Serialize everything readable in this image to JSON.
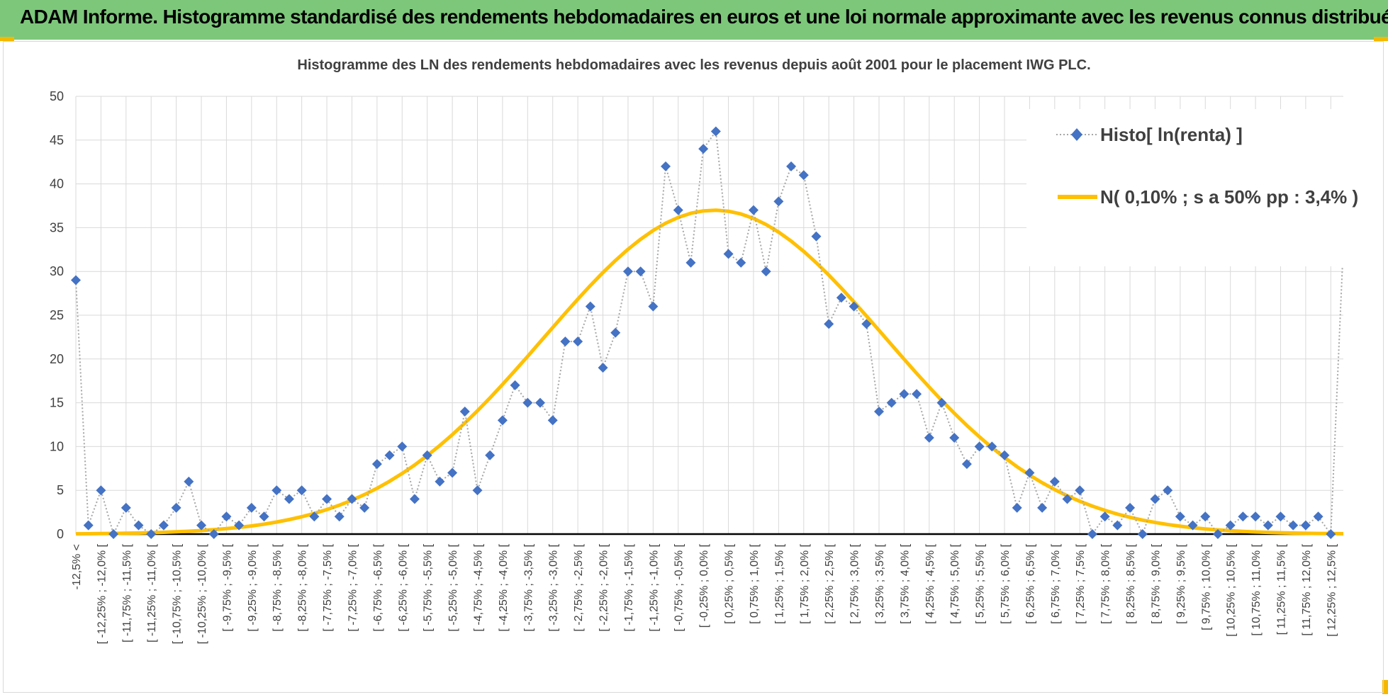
{
  "header": {
    "title": "ADAM Informe. Histogramme standardisé des rendements hebdomadaires en euros et une loi normale approximante avec les revenus connus distribués"
  },
  "colors": {
    "banner": "#7dc77b",
    "histo": "#4472c4",
    "histo_line": "#a6a6a6",
    "normal": "#ffc000",
    "grid": "#d9d9d9",
    "axis": "#000000"
  },
  "chart_data": {
    "type": "line",
    "title": "Histogramme des LN des rendements hebdomadaires avec les revenus depuis août 2001 pour le placement IWG PLC.",
    "xlabel": "",
    "ylabel": "",
    "ylim": [
      0,
      50
    ],
    "yticks": [
      0,
      5,
      10,
      15,
      20,
      25,
      30,
      35,
      40,
      45,
      50
    ],
    "grid": true,
    "legend_position": "top-right",
    "categories": [
      "-12,5% <",
      "[ -12,5% ; -12,25% [",
      "[ -12,25% ; -12,0% [",
      "[ -12,0% ; -11,75% [",
      "[ -11,75% ; -11,5% [",
      "[ -11,5% ; -11,25% [",
      "[ -11,25% ; -11,0% [",
      "[ -11,0% ; -10,75% [",
      "[ -10,75% ; -10,5% [",
      "[ -10,5% ; -10,25% [",
      "[ -10,25% ; -10,0% [",
      "[ -10,0% ; -9,75% [",
      "[ -9,75% ; -9,5% [",
      "[ -9,5% ; -9,25% [",
      "[ -9,25% ; -9,0% [",
      "[ -9,0% ; -8,75% [",
      "[ -8,75% ; -8,5% [",
      "[ -8,5% ; -8,25% [",
      "[ -8,25% ; -8,0% [",
      "[ -8,0% ; -7,75% [",
      "[ -7,75% ; -7,5% [",
      "[ -7,5% ; -7,25% [",
      "[ -7,25% ; -7,0% [",
      "[ -7,0% ; -6,75% [",
      "[ -6,75% ; -6,5% [",
      "[ -6,5% ; -6,25% [",
      "[ -6,25% ; -6,0% [",
      "[ -6,0% ; -5,75% [",
      "[ -5,75% ; -5,5% [",
      "[ -5,5% ; -5,25% [",
      "[ -5,25% ; -5,0% [",
      "[ -5,0% ; -4,75% [",
      "[ -4,75% ; -4,5% [",
      "[ -4,5% ; -4,25% [",
      "[ -4,25% ; -4,0% [",
      "[ -4,0% ; -3,75% [",
      "[ -3,75% ; -3,5% [",
      "[ -3,5% ; -3,25% [",
      "[ -3,25% ; -3,0% [",
      "[ -3,0% ; -2,75% [",
      "[ -2,75% ; -2,5% [",
      "[ -2,5% ; -2,25% [",
      "[ -2,25% ; -2,0% [",
      "[ -2,0% ; -1,75% [",
      "[ -1,75% ; -1,5% [",
      "[ -1,5% ; -1,25% [",
      "[ -1,25% ; -1,0% [",
      "[ -1,0% ; -0,75% [",
      "[ -0,75% ; -0,5% [",
      "[ -0,5% ; -0,25% [",
      "[ -0,25% ; 0,0% [",
      "[ 0,0% ; 0,25% [",
      "[ 0,25% ; 0,5% [",
      "[ 0,5% ; 0,75% [",
      "[ 0,75% ; 1,0% [",
      "[ 1,0% ; 1,25% [",
      "[ 1,25% ; 1,5% [",
      "[ 1,5% ; 1,75% [",
      "[ 1,75% ; 2,0% [",
      "[ 2,0% ; 2,25% [",
      "[ 2,25% ; 2,5% [",
      "[ 2,5% ; 2,75% [",
      "[ 2,75% ; 3,0% [",
      "[ 3,0% ; 3,25% [",
      "[ 3,25% ; 3,5% [",
      "[ 3,5% ; 3,75% [",
      "[ 3,75% ; 4,0% [",
      "[ 4,0% ; 4,25% [",
      "[ 4,25% ; 4,5% [",
      "[ 4,5% ; 4,75% [",
      "[ 4,75% ; 5,0% [",
      "[ 5,0% ; 5,25% [",
      "[ 5,25% ; 5,5% [",
      "[ 5,5% ; 5,75% [",
      "[ 5,75% ; 6,0% [",
      "[ 6,0% ; 6,25% [",
      "[ 6,25% ; 6,5% [",
      "[ 6,5% ; 6,75% [",
      "[ 6,75% ; 7,0% [",
      "[ 7,0% ; 7,25% [",
      "[ 7,25% ; 7,5% [",
      "[ 7,5% ; 7,75% [",
      "[ 7,75% ; 8,0% [",
      "[ 8,0% ; 8,25% [",
      "[ 8,25% ; 8,5% [",
      "[ 8,5% ; 8,75% [",
      "[ 8,75% ; 9,0% [",
      "[ 9,0% ; 9,25% [",
      "[ 9,25% ; 9,5% [",
      "[ 9,5% ; 9,75% [",
      "[ 9,75% ; 10,0% [",
      "[ 10,0% ; 10,25% [",
      "[ 10,25% ; 10,5% [",
      "[ 10,5% ; 10,75% [",
      "[ 10,75% ; 11,0% [",
      "[ 11,0% ; 11,25% [",
      "[ 11,25% ; 11,5% [",
      "[ 11,5% ; 11,75% [",
      "[ 11,75% ; 12,0% [",
      "[ 12,0% ; 12,25% [",
      "[ 12,25% ; 12,5% [",
      "12,5% <"
    ],
    "series": [
      {
        "name": "Histo[ ln(renta) ]",
        "style": "dotted line with diamond markers",
        "values": [
          29,
          1,
          5,
          0,
          3,
          1,
          0,
          1,
          3,
          6,
          1,
          0,
          2,
          1,
          3,
          2,
          5,
          4,
          5,
          2,
          4,
          2,
          4,
          3,
          8,
          9,
          10,
          4,
          9,
          6,
          7,
          14,
          5,
          9,
          13,
          17,
          15,
          15,
          13,
          22,
          22,
          26,
          19,
          23,
          30,
          30,
          26,
          42,
          37,
          31,
          44,
          46,
          32,
          31,
          37,
          30,
          38,
          42,
          41,
          34,
          24,
          27,
          26,
          24,
          14,
          15,
          16,
          16,
          11,
          15,
          11,
          8,
          10,
          10,
          9,
          3,
          7,
          3,
          6,
          4,
          5,
          0,
          2,
          1,
          3,
          0,
          4,
          5,
          2,
          1,
          2,
          0,
          1,
          2,
          2,
          1,
          2,
          1,
          1,
          2,
          0,
          33
        ]
      },
      {
        "name": "N( 0,10% ; s a 50% pp : 3,4% )",
        "style": "smooth line",
        "mean_pct": 0.1,
        "sd_pct": 3.4,
        "peak": 37
      }
    ]
  }
}
